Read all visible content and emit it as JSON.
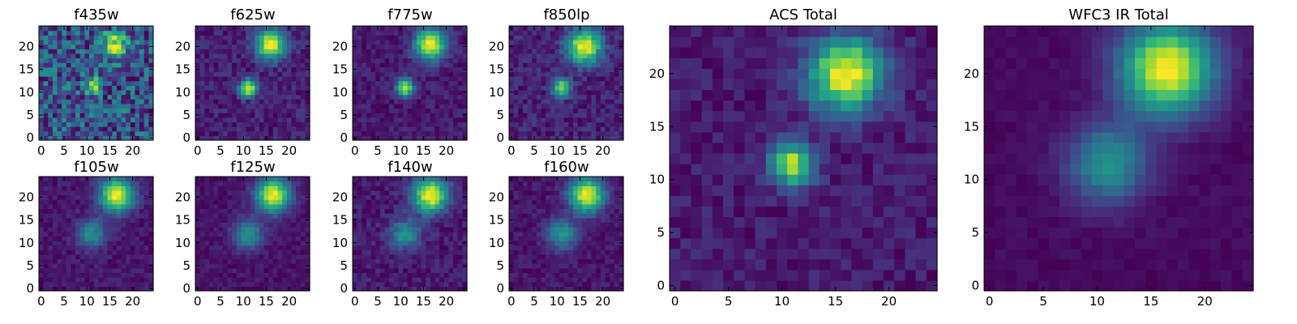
{
  "figure": {
    "colormap": "viridis",
    "colormap_stops": [
      "#440154",
      "#482878",
      "#3e4989",
      "#31688e",
      "#26828e",
      "#1f9e89",
      "#35b779",
      "#6ece58",
      "#b5de2b",
      "#fde725"
    ]
  },
  "chart_data": [
    {
      "type": "heatmap",
      "title": "f435w",
      "grid_size": 25,
      "xlim": [
        0,
        24
      ],
      "ylim": [
        0,
        24
      ],
      "xticks": [
        0,
        5,
        10,
        15,
        20
      ],
      "yticks": [
        0,
        5,
        10,
        15,
        20
      ],
      "background_level": 0.55,
      "noise_amplitude": 0.45,
      "sources": [
        {
          "x": 11.5,
          "y": 11.5,
          "sigma": 1.2,
          "amplitude": 0.7
        },
        {
          "x": 16.0,
          "y": 20.5,
          "sigma": 2.0,
          "amplitude": 0.55
        }
      ]
    },
    {
      "type": "heatmap",
      "title": "f625w",
      "grid_size": 25,
      "xlim": [
        0,
        24
      ],
      "ylim": [
        0,
        24
      ],
      "xticks": [
        0,
        5,
        10,
        15,
        20
      ],
      "yticks": [
        0,
        5,
        10,
        15,
        20
      ],
      "background_level": 0.2,
      "noise_amplitude": 0.16,
      "sources": [
        {
          "x": 11.0,
          "y": 11.0,
          "sigma": 1.3,
          "amplitude": 0.75
        },
        {
          "x": 16.0,
          "y": 20.5,
          "sigma": 2.2,
          "amplitude": 0.8
        }
      ]
    },
    {
      "type": "heatmap",
      "title": "f775w",
      "grid_size": 25,
      "xlim": [
        0,
        24
      ],
      "ylim": [
        0,
        24
      ],
      "xticks": [
        0,
        5,
        10,
        15,
        20
      ],
      "yticks": [
        0,
        5,
        10,
        15,
        20
      ],
      "background_level": 0.18,
      "noise_amplitude": 0.14,
      "sources": [
        {
          "x": 11.0,
          "y": 11.0,
          "sigma": 1.3,
          "amplitude": 0.8
        },
        {
          "x": 16.5,
          "y": 20.5,
          "sigma": 2.4,
          "amplitude": 0.85
        }
      ]
    },
    {
      "type": "heatmap",
      "title": "f850lp",
      "grid_size": 25,
      "xlim": [
        0,
        24
      ],
      "ylim": [
        0,
        24
      ],
      "xticks": [
        0,
        5,
        10,
        15,
        20
      ],
      "yticks": [
        0,
        5,
        10,
        15,
        20
      ],
      "background_level": 0.18,
      "noise_amplitude": 0.18,
      "sources": [
        {
          "x": 11.0,
          "y": 11.0,
          "sigma": 1.4,
          "amplitude": 0.7
        },
        {
          "x": 16.0,
          "y": 20.0,
          "sigma": 2.6,
          "amplitude": 0.85
        }
      ]
    },
    {
      "type": "heatmap",
      "title": "f105w",
      "grid_size": 25,
      "xlim": [
        0,
        24
      ],
      "ylim": [
        0,
        24
      ],
      "xticks": [
        0,
        5,
        10,
        15,
        20
      ],
      "yticks": [
        0,
        5,
        10,
        15,
        20
      ],
      "background_level": 0.15,
      "noise_amplitude": 0.12,
      "sources": [
        {
          "x": 16.5,
          "y": 20.5,
          "sigma": 2.6,
          "amplitude": 0.9
        },
        {
          "x": 11.0,
          "y": 12.0,
          "sigma": 2.2,
          "amplitude": 0.45
        }
      ]
    },
    {
      "type": "heatmap",
      "title": "f125w",
      "grid_size": 25,
      "xlim": [
        0,
        24
      ],
      "ylim": [
        0,
        24
      ],
      "xticks": [
        0,
        5,
        10,
        15,
        20
      ],
      "yticks": [
        0,
        5,
        10,
        15,
        20
      ],
      "background_level": 0.15,
      "noise_amplitude": 0.1,
      "sources": [
        {
          "x": 16.5,
          "y": 20.5,
          "sigma": 2.6,
          "amplitude": 0.9
        },
        {
          "x": 11.0,
          "y": 12.0,
          "sigma": 2.3,
          "amplitude": 0.45
        }
      ]
    },
    {
      "type": "heatmap",
      "title": "f140w",
      "grid_size": 25,
      "xlim": [
        0,
        24
      ],
      "ylim": [
        0,
        24
      ],
      "xticks": [
        0,
        5,
        10,
        15,
        20
      ],
      "yticks": [
        0,
        5,
        10,
        15,
        20
      ],
      "background_level": 0.18,
      "noise_amplitude": 0.14,
      "sources": [
        {
          "x": 16.5,
          "y": 20.5,
          "sigma": 2.6,
          "amplitude": 0.85
        },
        {
          "x": 11.0,
          "y": 12.0,
          "sigma": 2.3,
          "amplitude": 0.4
        }
      ]
    },
    {
      "type": "heatmap",
      "title": "f160w",
      "grid_size": 25,
      "xlim": [
        0,
        24
      ],
      "ylim": [
        0,
        24
      ],
      "xticks": [
        0,
        5,
        10,
        15,
        20
      ],
      "yticks": [
        0,
        5,
        10,
        15,
        20
      ],
      "background_level": 0.15,
      "noise_amplitude": 0.12,
      "sources": [
        {
          "x": 16.5,
          "y": 20.5,
          "sigma": 2.6,
          "amplitude": 0.9
        },
        {
          "x": 11.0,
          "y": 12.0,
          "sigma": 2.3,
          "amplitude": 0.45
        }
      ]
    },
    {
      "type": "heatmap",
      "title": "ACS Total",
      "grid_size": 25,
      "xlim": [
        0,
        24
      ],
      "ylim": [
        0,
        24
      ],
      "xticks": [
        0,
        5,
        10,
        15,
        20
      ],
      "yticks": [
        0,
        5,
        10,
        15,
        20
      ],
      "background_level": 0.18,
      "noise_amplitude": 0.14,
      "sources": [
        {
          "x": 11.0,
          "y": 11.5,
          "sigma": 1.4,
          "amplitude": 0.75
        },
        {
          "x": 16.0,
          "y": 20.0,
          "sigma": 2.4,
          "amplitude": 0.85
        }
      ]
    },
    {
      "type": "heatmap",
      "title": "WFC3 IR Total",
      "grid_size": 25,
      "xlim": [
        0,
        24
      ],
      "ylim": [
        0,
        24
      ],
      "xticks": [
        0,
        5,
        10,
        15,
        20
      ],
      "yticks": [
        0,
        5,
        10,
        15,
        20
      ],
      "background_level": 0.12,
      "noise_amplitude": 0.05,
      "sources": [
        {
          "x": 16.5,
          "y": 20.5,
          "sigma": 3.0,
          "amplitude": 0.9
        },
        {
          "x": 11.0,
          "y": 11.5,
          "sigma": 2.6,
          "amplitude": 0.45
        }
      ]
    }
  ]
}
